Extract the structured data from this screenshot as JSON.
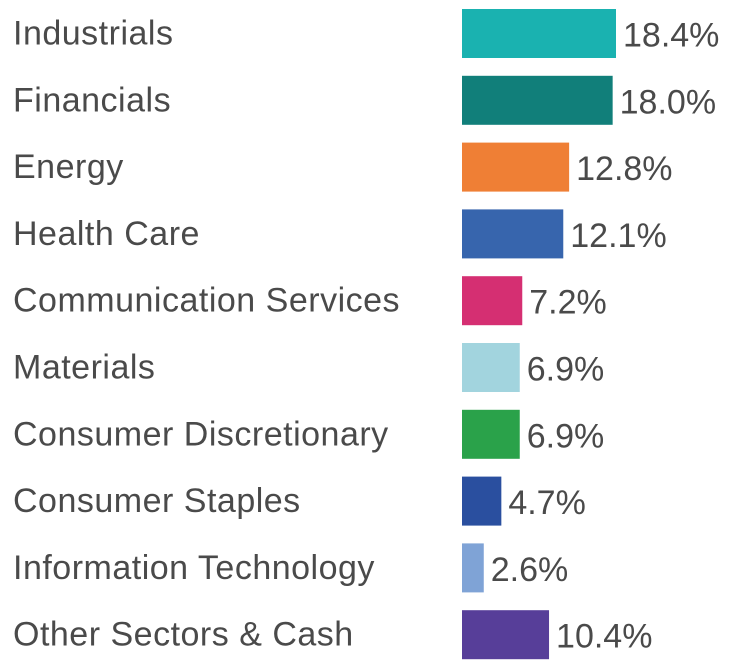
{
  "chart_data": {
    "type": "bar",
    "orientation": "horizontal",
    "title": "",
    "xlabel": "",
    "ylabel": "",
    "xlim": [
      0,
      18.4
    ],
    "grid": false,
    "legend": "none",
    "categories": [
      "Industrials",
      "Financials",
      "Energy",
      "Health Care",
      "Communication Services",
      "Materials",
      "Consumer Discretionary",
      "Consumer Staples",
      "Information Technology",
      "Other Sectors & Cash"
    ],
    "values": [
      18.4,
      18.0,
      12.8,
      12.1,
      7.2,
      6.9,
      6.9,
      4.7,
      2.6,
      10.4
    ],
    "value_labels": [
      "18.4%",
      "18.0%",
      "12.8%",
      "12.1%",
      "7.2%",
      "6.9%",
      "6.9%",
      "4.7%",
      "2.6%",
      "10.4%"
    ],
    "colors": [
      "#1ab2b0",
      "#117f7a",
      "#ef7f35",
      "#3765ad",
      "#d52f72",
      "#a2d4de",
      "#2aa24a",
      "#2a4f9f",
      "#7fa3d6",
      "#573e99"
    ]
  }
}
